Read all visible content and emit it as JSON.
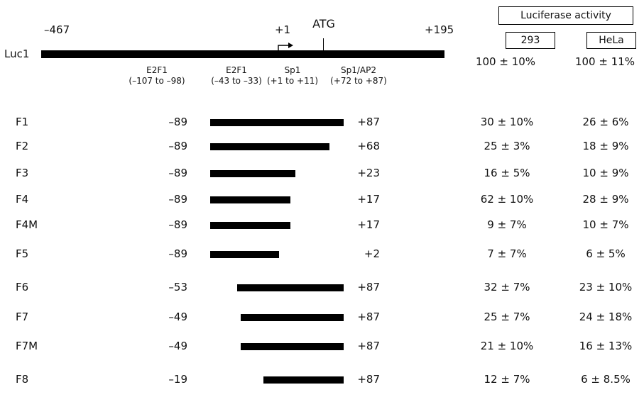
{
  "header": {
    "luciferase_title": "Luciferase activity",
    "col_293": "293",
    "col_hela": "HeLa"
  },
  "map": {
    "construct": "Luc1",
    "start": "–467",
    "end": "+195",
    "tss": "+1",
    "atg": "ATG",
    "luc1_293": "100 ± 10%",
    "luc1_hela": "100 ± 11%",
    "sites": [
      {
        "name": "E2F1",
        "range": "(–107 to –98)"
      },
      {
        "name": "E2F1",
        "range": "(–43 to –33)"
      },
      {
        "name": "Sp1",
        "range": "(+1 to +11)"
      },
      {
        "name": "Sp1/AP2",
        "range": "(+72 to +87)"
      }
    ]
  },
  "fragments": [
    {
      "name": "F1",
      "start": "–89",
      "end": "+87",
      "start_pos": -89,
      "end_pos": 87,
      "a293": "30 ± 10%",
      "hela": "26 ± 6%"
    },
    {
      "name": "F2",
      "start": "–89",
      "end": "+68",
      "start_pos": -89,
      "end_pos": 68,
      "a293": "25 ± 3%",
      "hela": "18 ± 9%"
    },
    {
      "name": "F3",
      "start": "–89",
      "end": "+23",
      "start_pos": -89,
      "end_pos": 23,
      "a293": "16 ± 5%",
      "hela": "10 ± 9%"
    },
    {
      "name": "F4",
      "start": "–89",
      "end": "+17",
      "start_pos": -89,
      "end_pos": 17,
      "a293": "62 ± 10%",
      "hela": "28 ± 9%"
    },
    {
      "name": "F4M",
      "start": "–89",
      "end": "+17",
      "start_pos": -89,
      "end_pos": 17,
      "a293": "9 ± 7%",
      "hela": "10 ± 7%"
    },
    {
      "name": "F5",
      "start": "–89",
      "end": "+2",
      "start_pos": -89,
      "end_pos": 2,
      "a293": "7 ± 7%",
      "hela": "6 ± 5%"
    },
    {
      "name": "F6",
      "start": "–53",
      "end": "+87",
      "start_pos": -53,
      "end_pos": 87,
      "a293": "32 ± 7%",
      "hela": "23 ± 10%"
    },
    {
      "name": "F7",
      "start": "–49",
      "end": "+87",
      "start_pos": -49,
      "end_pos": 87,
      "a293": "25 ± 7%",
      "hela": "24 ± 18%"
    },
    {
      "name": "F7M",
      "start": "–49",
      "end": "+87",
      "start_pos": -49,
      "end_pos": 87,
      "a293": "21 ± 10%",
      "hela": "16 ± 13%"
    },
    {
      "name": "F8",
      "start": "–19",
      "end": "+87",
      "start_pos": -19,
      "end_pos": 87,
      "a293": "12 ± 7%",
      "hela": "6 ± 8.5%"
    }
  ]
}
